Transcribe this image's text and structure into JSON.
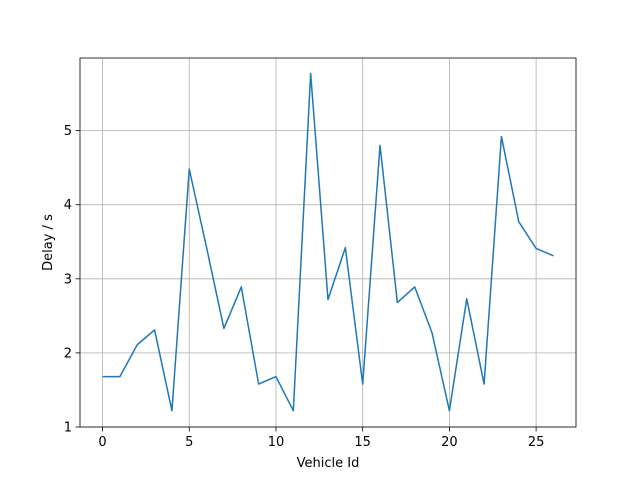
{
  "chart_data": {
    "type": "line",
    "xlabel": "Vehicle Id",
    "ylabel": "Delay / s",
    "xlim": [
      -1.3,
      27.3
    ],
    "ylim": [
      1.0,
      5.98
    ],
    "xticks": [
      0,
      5,
      10,
      15,
      20,
      25
    ],
    "yticks": [
      1,
      2,
      3,
      4,
      5
    ],
    "grid": true,
    "line_color": "#1f77b4",
    "x": [
      0,
      1,
      2,
      3,
      4,
      5,
      6,
      7,
      8,
      9,
      10,
      11,
      12,
      13,
      14,
      15,
      16,
      17,
      18,
      19,
      20,
      21,
      22,
      23,
      24,
      25,
      26
    ],
    "series": [
      {
        "values": [
          1.68,
          1.68,
          2.11,
          2.31,
          1.22,
          4.48,
          3.42,
          2.33,
          2.89,
          1.58,
          1.68,
          1.22,
          5.77,
          2.72,
          3.42,
          1.58,
          4.8,
          2.68,
          2.89,
          2.27,
          1.22,
          2.73,
          1.58,
          4.92,
          3.77,
          3.41,
          3.31
        ]
      }
    ]
  }
}
